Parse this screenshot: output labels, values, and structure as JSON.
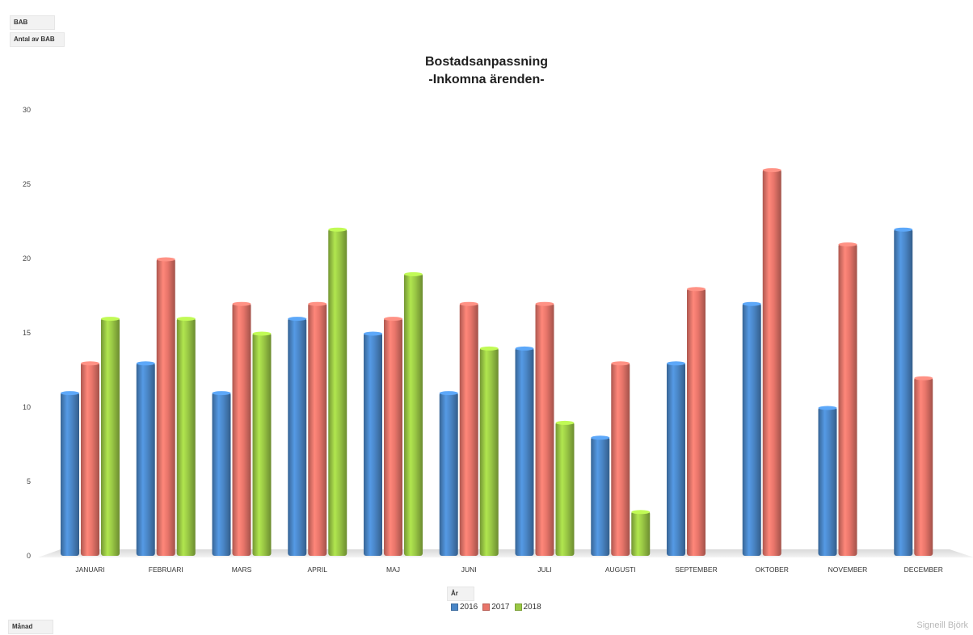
{
  "filters": {
    "bab_label": "BAB",
    "values_label": "Antal av BAB",
    "axis_label": "Månad",
    "legend_title": "År"
  },
  "signature": "Signeill Björk",
  "colors": {
    "2016": "#4a86c7",
    "2017": "#e8756a",
    "2018": "#9ac845"
  },
  "chart_data": {
    "type": "bar",
    "title": "Bostadsanpassning",
    "subtitle": "-Inkomna ärenden-",
    "categories": [
      "JANUARI",
      "FEBRUARI",
      "MARS",
      "APRIL",
      "MAJ",
      "JUNI",
      "JULI",
      "AUGUSTI",
      "SEPTEMBER",
      "OKTOBER",
      "NOVEMBER",
      "DECEMBER"
    ],
    "series": [
      {
        "name": "2016",
        "values": [
          11,
          13,
          11,
          16,
          15,
          11,
          14,
          8,
          13,
          17,
          10,
          22
        ]
      },
      {
        "name": "2017",
        "values": [
          13,
          20,
          17,
          17,
          16,
          17,
          17,
          13,
          18,
          26,
          21,
          12
        ]
      },
      {
        "name": "2018",
        "values": [
          16,
          16,
          15,
          22,
          19,
          14,
          9,
          3,
          null,
          null,
          null,
          null
        ]
      }
    ],
    "ylim": [
      0,
      30
    ],
    "yticks": [
      0,
      5,
      10,
      15,
      20,
      25,
      30
    ],
    "legend_position": "bottom",
    "grid": false
  }
}
